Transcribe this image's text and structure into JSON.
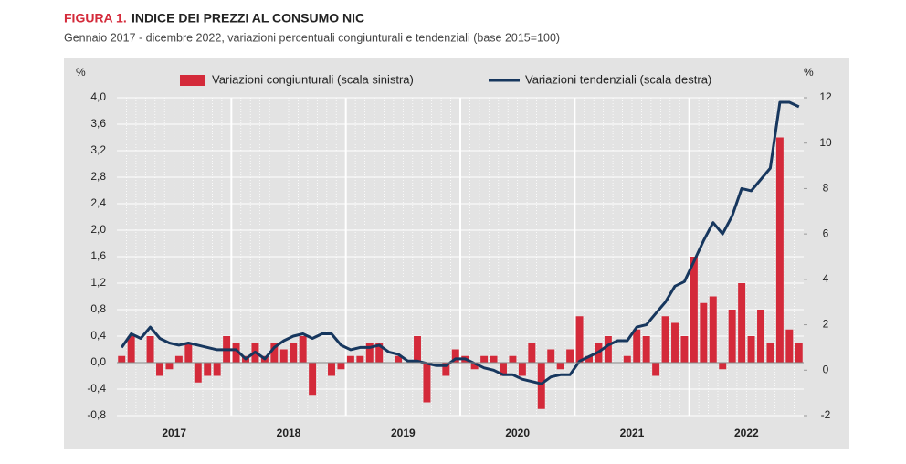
{
  "chart_data": {
    "type": "bar_line",
    "figure_label": "FIGURA 1.",
    "title": "INDICE DEI PREZZI AL CONSUMO NIC",
    "subtitle": "Gennaio 2017 - dicembre 2022, variazioni percentuali congiunturali e tendenziali (base 2015=100)",
    "y_unit": "%",
    "y2_unit": "%",
    "years": [
      "2017",
      "2018",
      "2019",
      "2020",
      "2021",
      "2022"
    ],
    "series": [
      {
        "name": "Variazioni congiunturali (scala sinistra)",
        "type": "bar",
        "color": "#d42a3a",
        "axis": "y",
        "values": [
          0.1,
          0.4,
          0.0,
          0.4,
          -0.2,
          -0.1,
          0.1,
          0.3,
          -0.3,
          -0.2,
          -0.2,
          0.4,
          0.3,
          0.1,
          0.3,
          0.1,
          0.3,
          0.2,
          0.3,
          0.4,
          -0.5,
          0.0,
          -0.2,
          -0.1,
          0.1,
          0.1,
          0.3,
          0.3,
          0.0,
          0.1,
          0.0,
          0.4,
          -0.6,
          0.0,
          -0.2,
          0.2,
          0.1,
          -0.1,
          0.1,
          0.1,
          -0.2,
          0.1,
          -0.2,
          0.3,
          -0.7,
          0.2,
          -0.1,
          0.2,
          0.7,
          0.1,
          0.3,
          0.4,
          0.0,
          0.1,
          0.5,
          0.4,
          -0.2,
          0.7,
          0.6,
          0.4,
          1.6,
          0.9,
          1.0,
          -0.1,
          0.8,
          1.2,
          0.4,
          0.8,
          0.3,
          3.4,
          0.5,
          0.3
        ]
      },
      {
        "name": "Variazioni tendenziali (scala destra)",
        "type": "line",
        "color": "#17375e",
        "axis": "y2",
        "values": [
          1.0,
          1.6,
          1.4,
          1.9,
          1.4,
          1.2,
          1.1,
          1.2,
          1.1,
          1.0,
          0.9,
          0.9,
          0.9,
          0.5,
          0.8,
          0.5,
          1.0,
          1.3,
          1.5,
          1.6,
          1.4,
          1.6,
          1.6,
          1.1,
          0.9,
          1.0,
          1.0,
          1.1,
          0.8,
          0.7,
          0.4,
          0.4,
          0.3,
          0.2,
          0.2,
          0.5,
          0.5,
          0.3,
          0.1,
          0.0,
          -0.2,
          -0.2,
          -0.4,
          -0.5,
          -0.6,
          -0.3,
          -0.2,
          -0.2,
          0.4,
          0.6,
          0.8,
          1.1,
          1.3,
          1.3,
          1.9,
          2.0,
          2.5,
          3.0,
          3.7,
          3.9,
          4.8,
          5.7,
          6.5,
          6.0,
          6.8,
          8.0,
          7.9,
          8.4,
          8.9,
          11.8,
          11.8,
          11.6
        ]
      }
    ],
    "ylim": [
      -0.8,
      4.0
    ],
    "yticks": [
      {
        "value": -0.8,
        "label": "-0,8"
      },
      {
        "value": -0.4,
        "label": "-0,4"
      },
      {
        "value": 0,
        "label": "0,0"
      },
      {
        "value": 0.4,
        "label": "0,4"
      },
      {
        "value": 0.8,
        "label": "0,8"
      },
      {
        "value": 1.2,
        "label": "1,2"
      },
      {
        "value": 1.6,
        "label": "1,6"
      },
      {
        "value": 2.0,
        "label": "2,0"
      },
      {
        "value": 2.4,
        "label": "2,4"
      },
      {
        "value": 2.8,
        "label": "2,8"
      },
      {
        "value": 3.2,
        "label": "3,2"
      },
      {
        "value": 3.6,
        "label": "3,6"
      },
      {
        "value": 4.0,
        "label": "4,0"
      }
    ],
    "y2lim": [
      -2,
      12
    ],
    "y2ticks": [
      -2,
      0,
      2,
      4,
      6,
      8,
      10,
      12
    ],
    "grid": true,
    "legend": "top"
  }
}
